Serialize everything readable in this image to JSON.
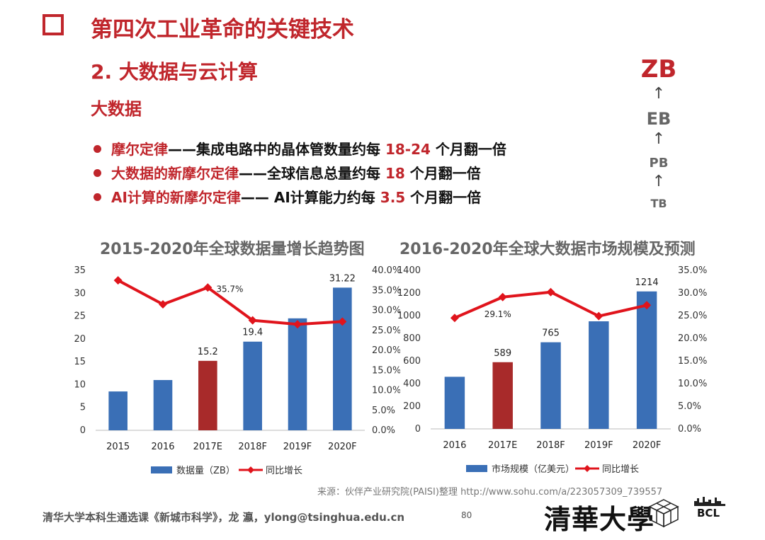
{
  "slide": {
    "title": "第四次工业革命的关键技术",
    "subtitle": "2. 大数据与云计算",
    "section": "大数据",
    "bullets": [
      {
        "term": "摩尔定律",
        "dash": "——",
        "text_before": "集成电路中的晶体管数量约每 ",
        "number": "18-24",
        "text_after": " 个月翻一倍"
      },
      {
        "term": "大数据的新摩尔定律",
        "dash": "——",
        "text_before": "全球信息总量约每 ",
        "number": "18",
        "text_after": " 个月翻一倍"
      },
      {
        "term": "AI计算的新摩尔定律",
        "dash": "—— ",
        "text_before": "AI计算能力约每 ",
        "number": "3.5",
        "text_after": " 个月翻一倍"
      }
    ],
    "units": {
      "zb": "ZB",
      "eb": "EB",
      "pb": "PB",
      "tb": "TB",
      "arrow": "↑"
    }
  },
  "colors": {
    "accent": "#c0262c",
    "bar_blue": "#3a6fb6",
    "bar_highlight": "#a82a2a",
    "line_red": "#e0141c"
  },
  "chart_data": [
    {
      "type": "bar",
      "title": "2015-2020年全球数据量增长趋势图",
      "categories": [
        "2015",
        "2016",
        "2017E",
        "2018F",
        "2019F",
        "2020F"
      ],
      "series": [
        {
          "name": "数据量（ZB）",
          "type": "bar",
          "axis": "left",
          "values": [
            8.5,
            11.0,
            15.2,
            19.4,
            24.5,
            31.22
          ],
          "highlight_index": 2
        },
        {
          "name": "同比增长",
          "type": "line",
          "axis": "right",
          "values": [
            37.5,
            31.5,
            35.7,
            27.5,
            26.5,
            27.2
          ]
        }
      ],
      "data_labels": [
        {
          "index": 2,
          "series": 0,
          "text": "15.2"
        },
        {
          "index": 3,
          "series": 0,
          "text": "19.4"
        },
        {
          "index": 5,
          "series": 0,
          "text": "31.22"
        },
        {
          "index": 2,
          "series": 1,
          "text": "35.7%"
        }
      ],
      "y_left": {
        "range": [
          0,
          35
        ],
        "ticks": [
          "0",
          "5",
          "10",
          "15",
          "20",
          "25",
          "30",
          "35"
        ]
      },
      "y_right": {
        "range": [
          0,
          40
        ],
        "ticks": [
          "0.0%",
          "5.0%",
          "10.0%",
          "15.0%",
          "20.0%",
          "25.0%",
          "30.0%",
          "35.0%",
          "40.0%"
        ]
      },
      "legend": {
        "position": "bottom",
        "items": [
          "数据量（ZB）",
          "同比增长"
        ]
      }
    },
    {
      "type": "bar",
      "title": "2016-2020年全球大数据市场规模及预测",
      "categories": [
        "2016",
        "2017E",
        "2018F",
        "2019F",
        "2020F"
      ],
      "series": [
        {
          "name": "市场规模（亿美元）",
          "type": "bar",
          "axis": "left",
          "values": [
            460,
            589,
            765,
            950,
            1214
          ],
          "highlight_index": 1
        },
        {
          "name": "同比增长",
          "type": "line",
          "axis": "right",
          "values": [
            24.5,
            29.1,
            30.2,
            24.9,
            27.3
          ]
        }
      ],
      "data_labels": [
        {
          "index": 1,
          "series": 0,
          "text": "589"
        },
        {
          "index": 2,
          "series": 0,
          "text": "765"
        },
        {
          "index": 4,
          "series": 0,
          "text": "1214"
        },
        {
          "index": 1,
          "series": 1,
          "text": "29.1%"
        }
      ],
      "y_left": {
        "range": [
          0,
          1400
        ],
        "ticks": [
          "0",
          "200",
          "400",
          "600",
          "800",
          "1000",
          "1200",
          "1400"
        ]
      },
      "y_right": {
        "range": [
          0,
          35
        ],
        "ticks": [
          "0.0%",
          "5.0%",
          "10.0%",
          "15.0%",
          "20.0%",
          "25.0%",
          "30.0%",
          "35.0%"
        ]
      },
      "legend": {
        "position": "bottom",
        "items": [
          "市场规模（亿美元）",
          "同比增长"
        ]
      }
    }
  ],
  "source": "来源：伙伴产业研究院(PAISI)整理 http://www.sohu.com/a/223057309_739557",
  "footer": {
    "text": "清华大学本科生通选课《新城市科学》，龙 瀛，ylong@tsinghua.edu.cn",
    "page": "80"
  },
  "logos": {
    "university": "清華大學",
    "lab": "BCL"
  }
}
